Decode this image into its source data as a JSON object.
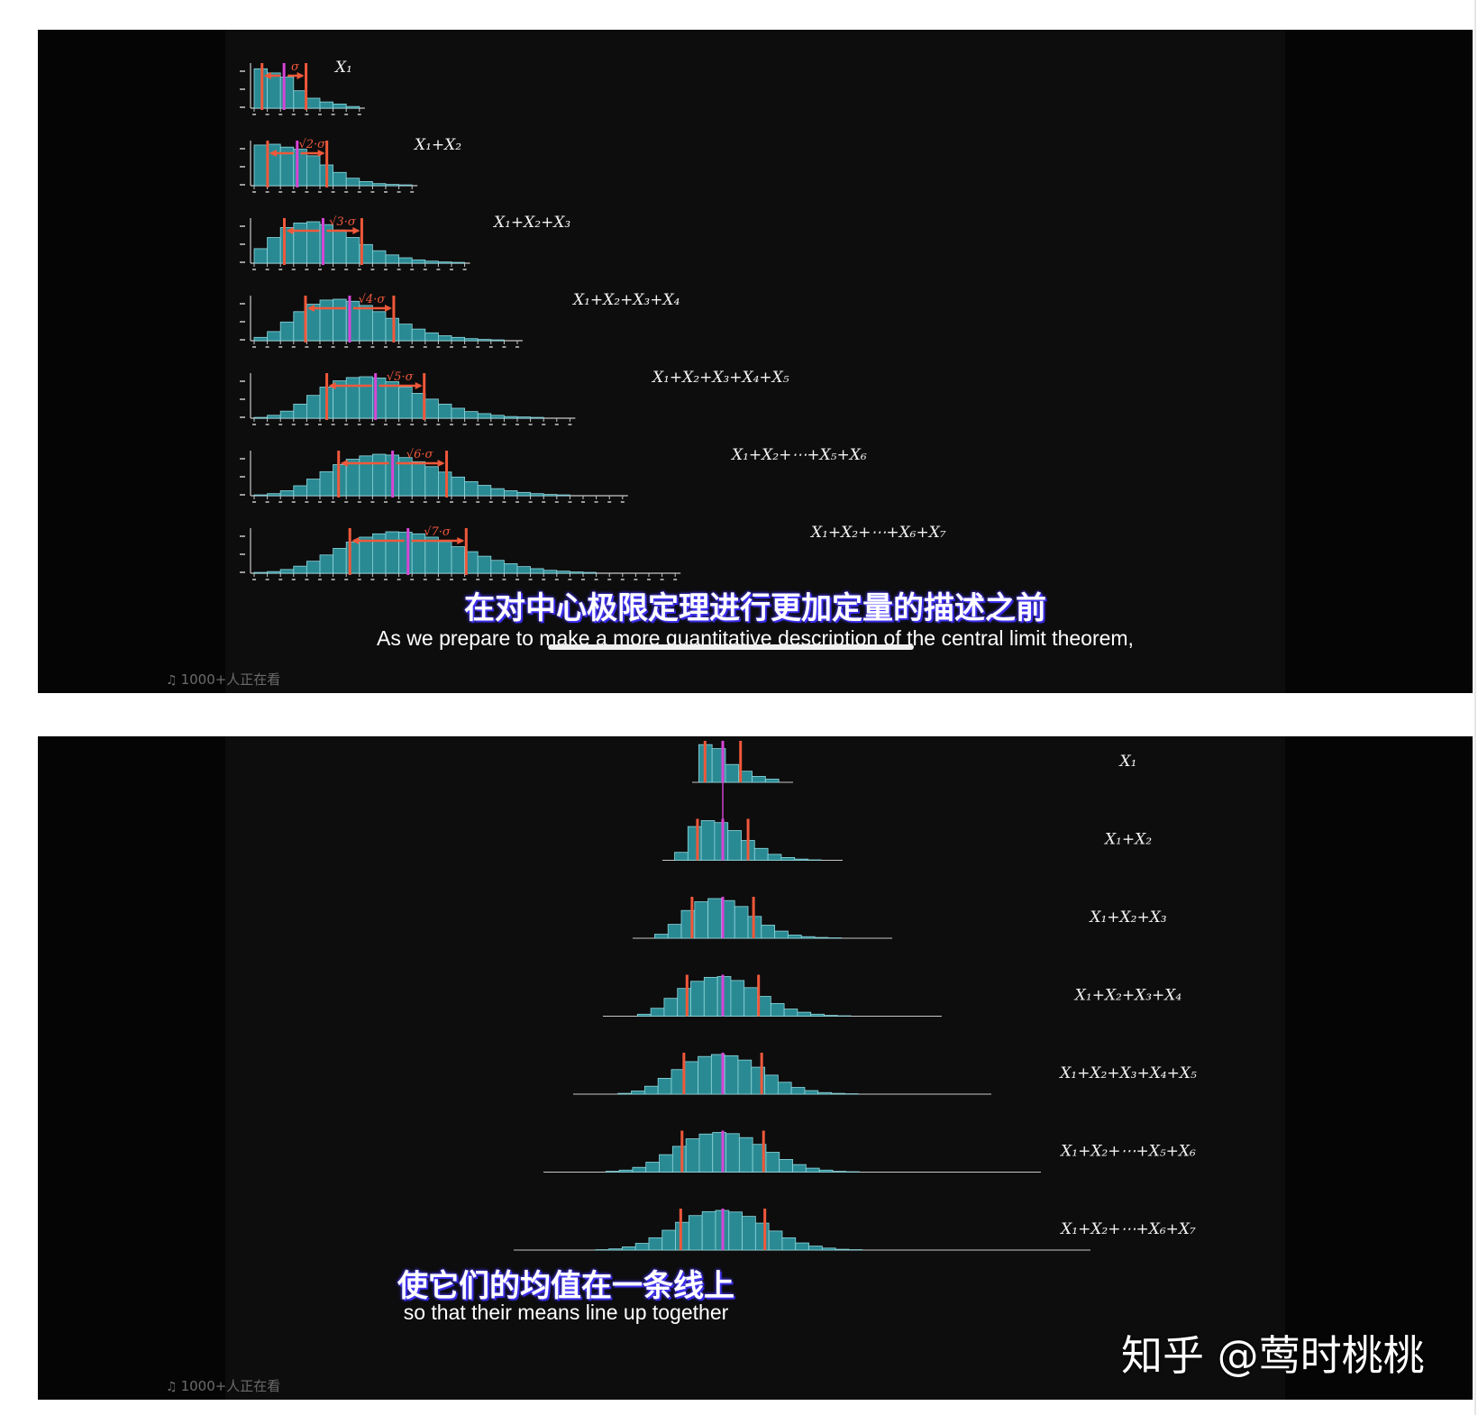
{
  "top_panel": {
    "rows": [
      {
        "label": "X₁",
        "sd_label": "σ",
        "bars": [
          0.95,
          0.85,
          0.75,
          0.42,
          0.24,
          0.15,
          0.1,
          0.04
        ]
      },
      {
        "label": "X₁+X₂",
        "sd_label": "√2·σ",
        "bars": [
          0.98,
          1.0,
          0.93,
          0.88,
          0.72,
          0.5,
          0.32,
          0.18,
          0.1,
          0.05,
          0.03,
          0.02
        ]
      },
      {
        "label": "X₁+X₂+X₃",
        "sd_label": "√3·σ",
        "bars": [
          0.35,
          0.62,
          0.86,
          0.97,
          1.0,
          0.93,
          0.8,
          0.62,
          0.45,
          0.3,
          0.2,
          0.13,
          0.08,
          0.05,
          0.03,
          0.02
        ]
      },
      {
        "label": "X₁+X₂+X₃+X₄",
        "sd_label": "√4·σ",
        "bars": [
          0.08,
          0.22,
          0.45,
          0.7,
          0.88,
          0.98,
          1.0,
          0.95,
          0.85,
          0.7,
          0.54,
          0.4,
          0.28,
          0.19,
          0.12,
          0.08,
          0.05,
          0.03,
          0.02
        ]
      },
      {
        "label": "X₁+X₂+X₃+X₄+X₅",
        "sd_label": "√5·σ",
        "bars": [
          0.02,
          0.07,
          0.17,
          0.34,
          0.55,
          0.75,
          0.9,
          0.98,
          1.0,
          0.97,
          0.88,
          0.75,
          0.6,
          0.46,
          0.34,
          0.24,
          0.16,
          0.11,
          0.07,
          0.04,
          0.03,
          0.02
        ]
      },
      {
        "label": "X₁+X₂+⋯+X₅+X₆",
        "sd_label": "√6·σ",
        "bars": [
          0.02,
          0.05,
          0.12,
          0.24,
          0.4,
          0.58,
          0.75,
          0.88,
          0.96,
          1.0,
          0.98,
          0.92,
          0.82,
          0.7,
          0.57,
          0.45,
          0.34,
          0.25,
          0.17,
          0.12,
          0.08,
          0.05,
          0.03,
          0.02
        ]
      },
      {
        "label": "X₁+X₂+⋯+X₆+X₇",
        "sd_label": "√7·σ",
        "bars": [
          0.02,
          0.04,
          0.09,
          0.17,
          0.29,
          0.44,
          0.6,
          0.75,
          0.87,
          0.95,
          1.0,
          0.99,
          0.95,
          0.87,
          0.76,
          0.64,
          0.52,
          0.41,
          0.31,
          0.23,
          0.16,
          0.11,
          0.07,
          0.05,
          0.03,
          0.02
        ]
      }
    ],
    "subtitle_cn": "在对中心极限定理进行更加定量的描述之前",
    "subtitle_en": "As we prepare to make a more quantitative description of the central limit theorem,",
    "viewers": "1000+人正在看"
  },
  "bottom_panel": {
    "rows": [
      {
        "label": "X₁",
        "bars": [
          0.95,
          0.85,
          0.45,
          0.28,
          0.15,
          0.08
        ]
      },
      {
        "label": "X₁+X₂",
        "bars": [
          0.2,
          0.85,
          1.0,
          0.95,
          0.75,
          0.5,
          0.3,
          0.15,
          0.07,
          0.03,
          0.01
        ]
      },
      {
        "label": "X₁+X₂+X₃",
        "bars": [
          0.1,
          0.35,
          0.7,
          0.92,
          1.0,
          0.95,
          0.8,
          0.55,
          0.33,
          0.18,
          0.08,
          0.04,
          0.02,
          0.01
        ]
      },
      {
        "label": "X₁+X₂+X₃+X₄",
        "bars": [
          0.05,
          0.2,
          0.45,
          0.7,
          0.88,
          0.98,
          1.0,
          0.9,
          0.72,
          0.5,
          0.32,
          0.18,
          0.1,
          0.05,
          0.02,
          0.01
        ]
      },
      {
        "label": "X₁+X₂+X₃+X₄+X₅",
        "bars": [
          0.02,
          0.08,
          0.2,
          0.4,
          0.62,
          0.82,
          0.95,
          1.0,
          0.97,
          0.86,
          0.68,
          0.48,
          0.3,
          0.17,
          0.09,
          0.04,
          0.02,
          0.01
        ]
      },
      {
        "label": "X₁+X₂+⋯+X₅+X₆",
        "bars": [
          0.02,
          0.05,
          0.12,
          0.25,
          0.44,
          0.65,
          0.84,
          0.96,
          1.0,
          0.97,
          0.87,
          0.7,
          0.5,
          0.32,
          0.19,
          0.1,
          0.05,
          0.02,
          0.01
        ]
      },
      {
        "label": "X₁+X₂+⋯+X₆+X₇",
        "bars": [
          0.01,
          0.03,
          0.08,
          0.17,
          0.31,
          0.5,
          0.7,
          0.87,
          0.97,
          1.0,
          0.96,
          0.85,
          0.68,
          0.48,
          0.31,
          0.18,
          0.1,
          0.05,
          0.02,
          0.01
        ]
      }
    ],
    "subtitle_cn": "使它们的均值在一条线上",
    "subtitle_en": "so that their means line up together",
    "viewers": "1000+人正在看"
  },
  "watermark": "知乎 @莺时桃桃",
  "colors": {
    "bar_fill": "#2a8a94",
    "bar_stroke": "#8fd6db",
    "mean_line": "#d645d6",
    "sd_line": "#f0583a",
    "arrow": "#f0583a",
    "axis": "#c8c8c8",
    "background": "#0d0d0e"
  },
  "icons": {
    "viewers": "headphone-icon"
  }
}
